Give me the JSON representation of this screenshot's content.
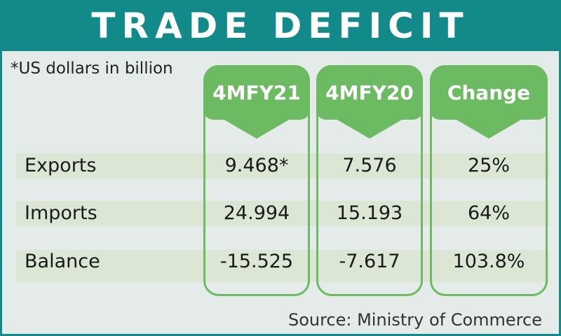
{
  "title": "TRADE DEFICIT",
  "note": "*US dollars in billion",
  "source": "Source: Ministry of Commerce",
  "colors": {
    "header": "#128a8a",
    "accent": "#6cbb62",
    "band": "#dbe7d4",
    "background": "#e5ebe8"
  },
  "chart_data": {
    "type": "table",
    "columns": [
      "4MFY21",
      "4MFY20",
      "Change"
    ],
    "rows": [
      {
        "label": "Exports",
        "values": [
          "9.468*",
          "7.576",
          "25%"
        ]
      },
      {
        "label": "Imports",
        "values": [
          "24.994",
          "15.193",
          "64%"
        ]
      },
      {
        "label": "Balance",
        "values": [
          "-15.525",
          "-7.617",
          "103.8%"
        ]
      }
    ]
  }
}
